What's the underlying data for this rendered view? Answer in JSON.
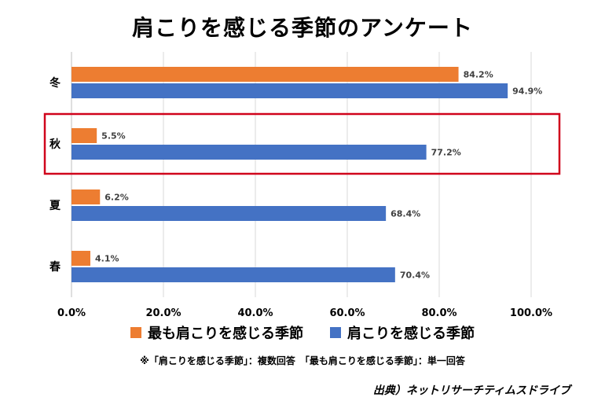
{
  "chart_data": {
    "type": "bar",
    "orientation": "horizontal",
    "title": "肩こりを感じる季節のアンケート",
    "categories": [
      "冬",
      "秋",
      "夏",
      "春"
    ],
    "series": [
      {
        "name": "最も肩こりを感じる季節",
        "color": "#ED7D31",
        "values": [
          84.2,
          5.5,
          6.2,
          4.1
        ]
      },
      {
        "name": "肩こりを感じる季節",
        "color": "#4472C4",
        "values": [
          94.9,
          77.2,
          68.4,
          70.4
        ]
      }
    ],
    "value_labels": [
      [
        "84.2%",
        "5.5%",
        "6.2%",
        "4.1%"
      ],
      [
        "94.9%",
        "77.2%",
        "68.4%",
        "70.4%"
      ]
    ],
    "x_ticks": [
      "0.0%",
      "20.0%",
      "40.0%",
      "60.0%",
      "80.0%",
      "100.0%"
    ],
    "xlim": [
      0,
      100
    ],
    "grid": true,
    "legend_position": "bottom",
    "highlighted_category": "秋",
    "highlight_color": "#D0021B"
  },
  "footnote": "※「肩こりを感じる季節」：複数回答　「最も肩こりを感じる季節」：単一回答",
  "source": "出典）ネットリサーチティムスドライブ"
}
